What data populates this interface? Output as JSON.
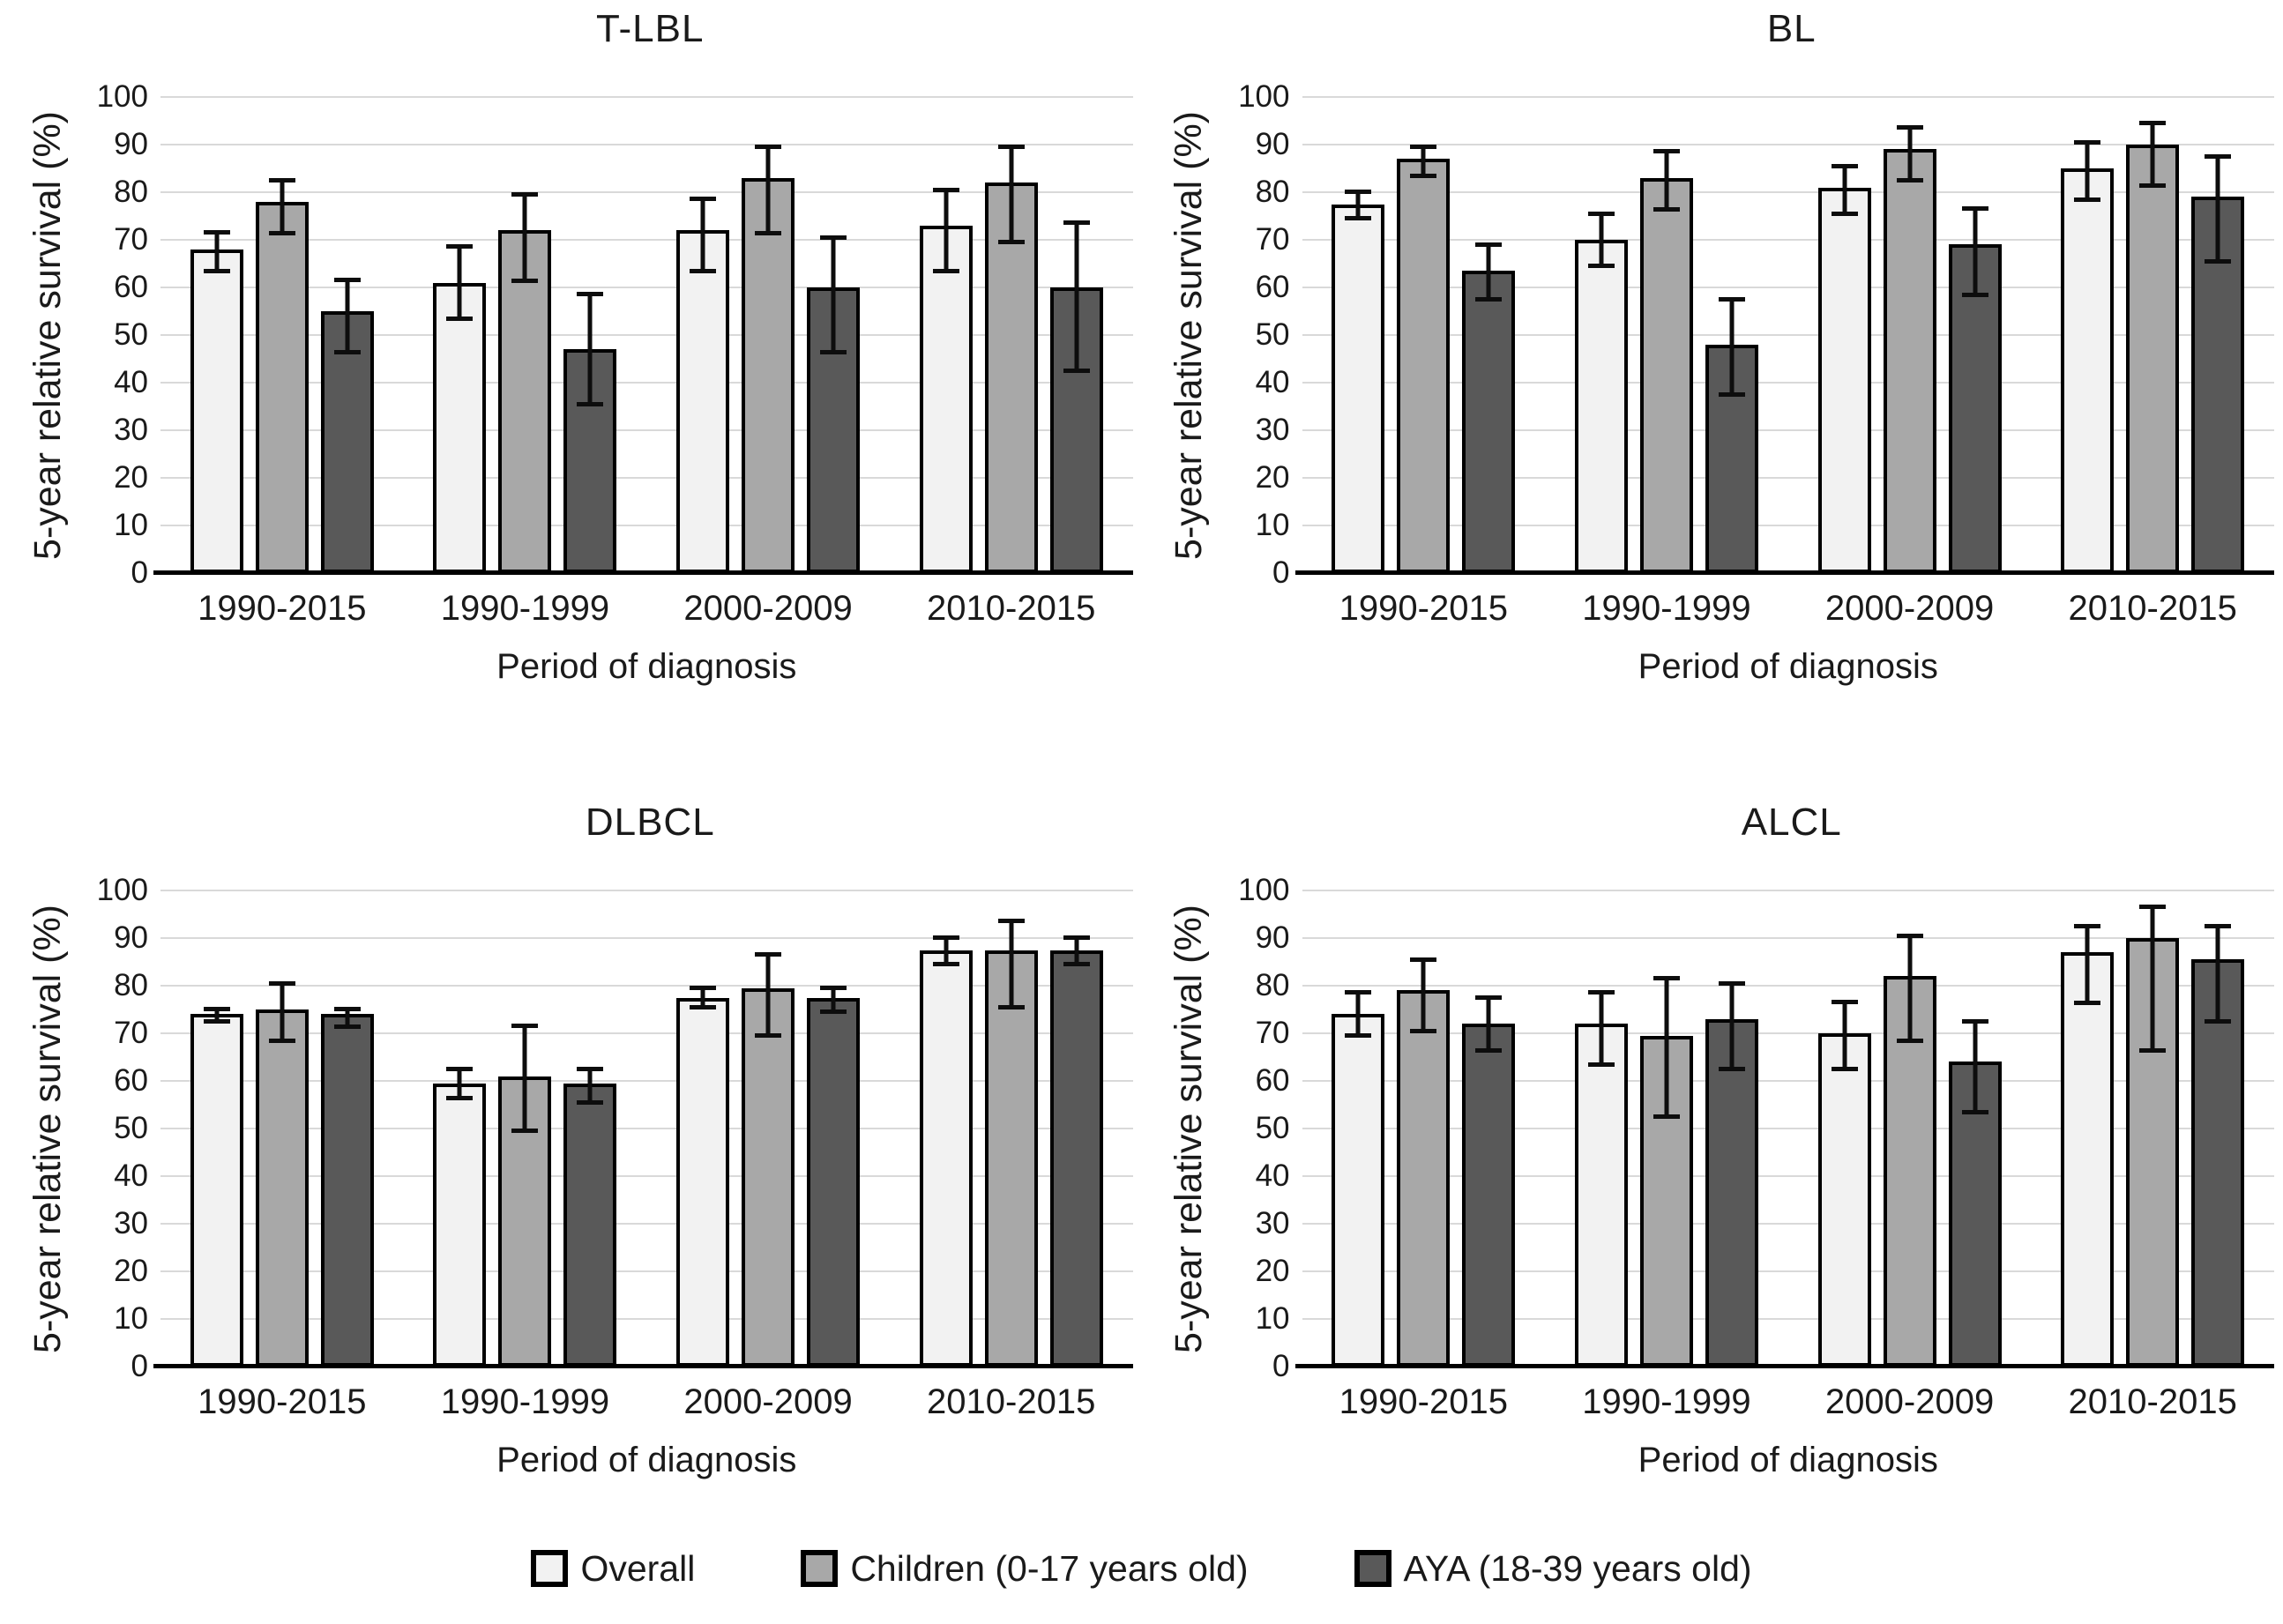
{
  "figure": {
    "background": "#ffffff",
    "gridline_color": "#d9d9d9",
    "baseline_color": "#000000",
    "error_bar_color": "#0d0d0d"
  },
  "axis": {
    "ylabel": "5-year relative survival (%)",
    "xlabel": "Period of diagnosis",
    "ylim": [
      0,
      100
    ],
    "yticks": [
      0,
      10,
      20,
      30,
      40,
      50,
      60,
      70,
      80,
      90,
      100
    ],
    "categories": [
      "1990-2015",
      "1990-1999",
      "2000-2009",
      "2010-2015"
    ],
    "grid": "horizontal"
  },
  "legend": {
    "position": "bottom-center",
    "items": [
      {
        "label": "Overall",
        "fill": "#f2f2f2"
      },
      {
        "label": "Children (0-17 years old)",
        "fill": "#a8a8a8"
      },
      {
        "label": "AYA  (18-39 years old)",
        "fill": "#595959"
      }
    ]
  },
  "chart_data": [
    {
      "type": "bar",
      "title": "T-LBL",
      "xlabel": "Period of diagnosis",
      "ylabel": "5-year relative survival (%)",
      "ylim": [
        0,
        100
      ],
      "categories": [
        "1990-2015",
        "1990-1999",
        "2000-2009",
        "2010-2015"
      ],
      "series": [
        {
          "name": "Overall",
          "values": [
            68,
            61,
            72,
            73
          ],
          "ci_low": [
            63,
            53,
            63,
            63
          ],
          "ci_high": [
            72,
            69,
            79,
            81
          ]
        },
        {
          "name": "Children (0-17 years old)",
          "values": [
            78,
            72,
            83,
            82
          ],
          "ci_low": [
            71,
            61,
            71,
            69
          ],
          "ci_high": [
            83,
            80,
            90,
            90
          ]
        },
        {
          "name": "AYA (18-39 years old)",
          "values": [
            55,
            47,
            60,
            60
          ],
          "ci_low": [
            46,
            35,
            46,
            42
          ],
          "ci_high": [
            62,
            59,
            71,
            74
          ]
        }
      ]
    },
    {
      "type": "bar",
      "title": "BL",
      "xlabel": "Period of diagnosis",
      "ylabel": "5-year relative survival (%)",
      "ylim": [
        0,
        100
      ],
      "categories": [
        "1990-2015",
        "1990-1999",
        "2000-2009",
        "2010-2015"
      ],
      "series": [
        {
          "name": "Overall",
          "values": [
            77.5,
            70,
            81,
            85
          ],
          "ci_low": [
            74,
            64,
            75,
            78
          ],
          "ci_high": [
            80.5,
            76,
            86,
            91
          ]
        },
        {
          "name": "Children (0-17 years old)",
          "values": [
            87,
            83,
            89,
            90
          ],
          "ci_low": [
            83,
            76,
            82,
            81
          ],
          "ci_high": [
            90,
            89,
            94,
            95
          ]
        },
        {
          "name": "AYA (18-39 years old)",
          "values": [
            63.5,
            48,
            69,
            79
          ],
          "ci_low": [
            57,
            37,
            58,
            65
          ],
          "ci_high": [
            69.5,
            58,
            77,
            88
          ]
        }
      ]
    },
    {
      "type": "bar",
      "title": "DLBCL",
      "xlabel": "Period of diagnosis",
      "ylabel": "5-year relative survival (%)",
      "ylim": [
        0,
        100
      ],
      "categories": [
        "1990-2015",
        "1990-1999",
        "2000-2009",
        "2010-2015"
      ],
      "series": [
        {
          "name": "Overall",
          "values": [
            74,
            59.5,
            77.5,
            87.5
          ],
          "ci_low": [
            72,
            56,
            75,
            84
          ],
          "ci_high": [
            75.5,
            63,
            80,
            90.5
          ]
        },
        {
          "name": "Children (0-17 years old)",
          "values": [
            75,
            61,
            79.5,
            87.5
          ],
          "ci_low": [
            68,
            49,
            69,
            75
          ],
          "ci_high": [
            81,
            72,
            87,
            94
          ]
        },
        {
          "name": "AYA (18-39 years old)",
          "values": [
            74,
            59.5,
            77.5,
            87.5
          ],
          "ci_low": [
            71,
            55,
            74,
            84
          ],
          "ci_high": [
            75.5,
            63,
            80,
            90.5
          ]
        }
      ]
    },
    {
      "type": "bar",
      "title": "ALCL",
      "xlabel": "Period of diagnosis",
      "ylabel": "5-year relative survival (%)",
      "ylim": [
        0,
        100
      ],
      "categories": [
        "1990-2015",
        "1990-1999",
        "2000-2009",
        "2010-2015"
      ],
      "series": [
        {
          "name": "Overall",
          "values": [
            74,
            72,
            70,
            87
          ],
          "ci_low": [
            69,
            63,
            62,
            76
          ],
          "ci_high": [
            79,
            79,
            77,
            93
          ]
        },
        {
          "name": "Children (0-17 years old)",
          "values": [
            79,
            69.5,
            82,
            90
          ],
          "ci_low": [
            70,
            52,
            68,
            66
          ],
          "ci_high": [
            86,
            82,
            91,
            97
          ]
        },
        {
          "name": "AYA (18-39 years old)",
          "values": [
            72,
            73,
            64,
            85.5
          ],
          "ci_low": [
            66,
            62,
            53,
            72
          ],
          "ci_high": [
            78,
            81,
            73,
            93
          ]
        }
      ]
    }
  ]
}
